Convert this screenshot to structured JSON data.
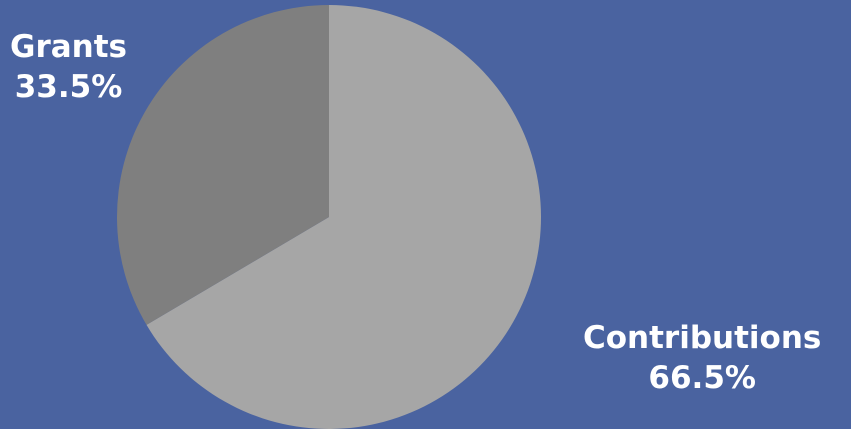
{
  "chart_data": {
    "type": "pie",
    "title": "",
    "slices": [
      {
        "label": "Contributions",
        "value": 66.5,
        "value_label": "66.5%",
        "color": "#a6a6a6"
      },
      {
        "label": "Grants",
        "value": 33.5,
        "value_label": "33.5%",
        "color": "#7f7f7f"
      }
    ],
    "start_angle_deg": 0,
    "direction": "clockwise",
    "legend": "none"
  },
  "colors": {
    "background": "#4a63a0",
    "label_text": "#ffffff"
  }
}
